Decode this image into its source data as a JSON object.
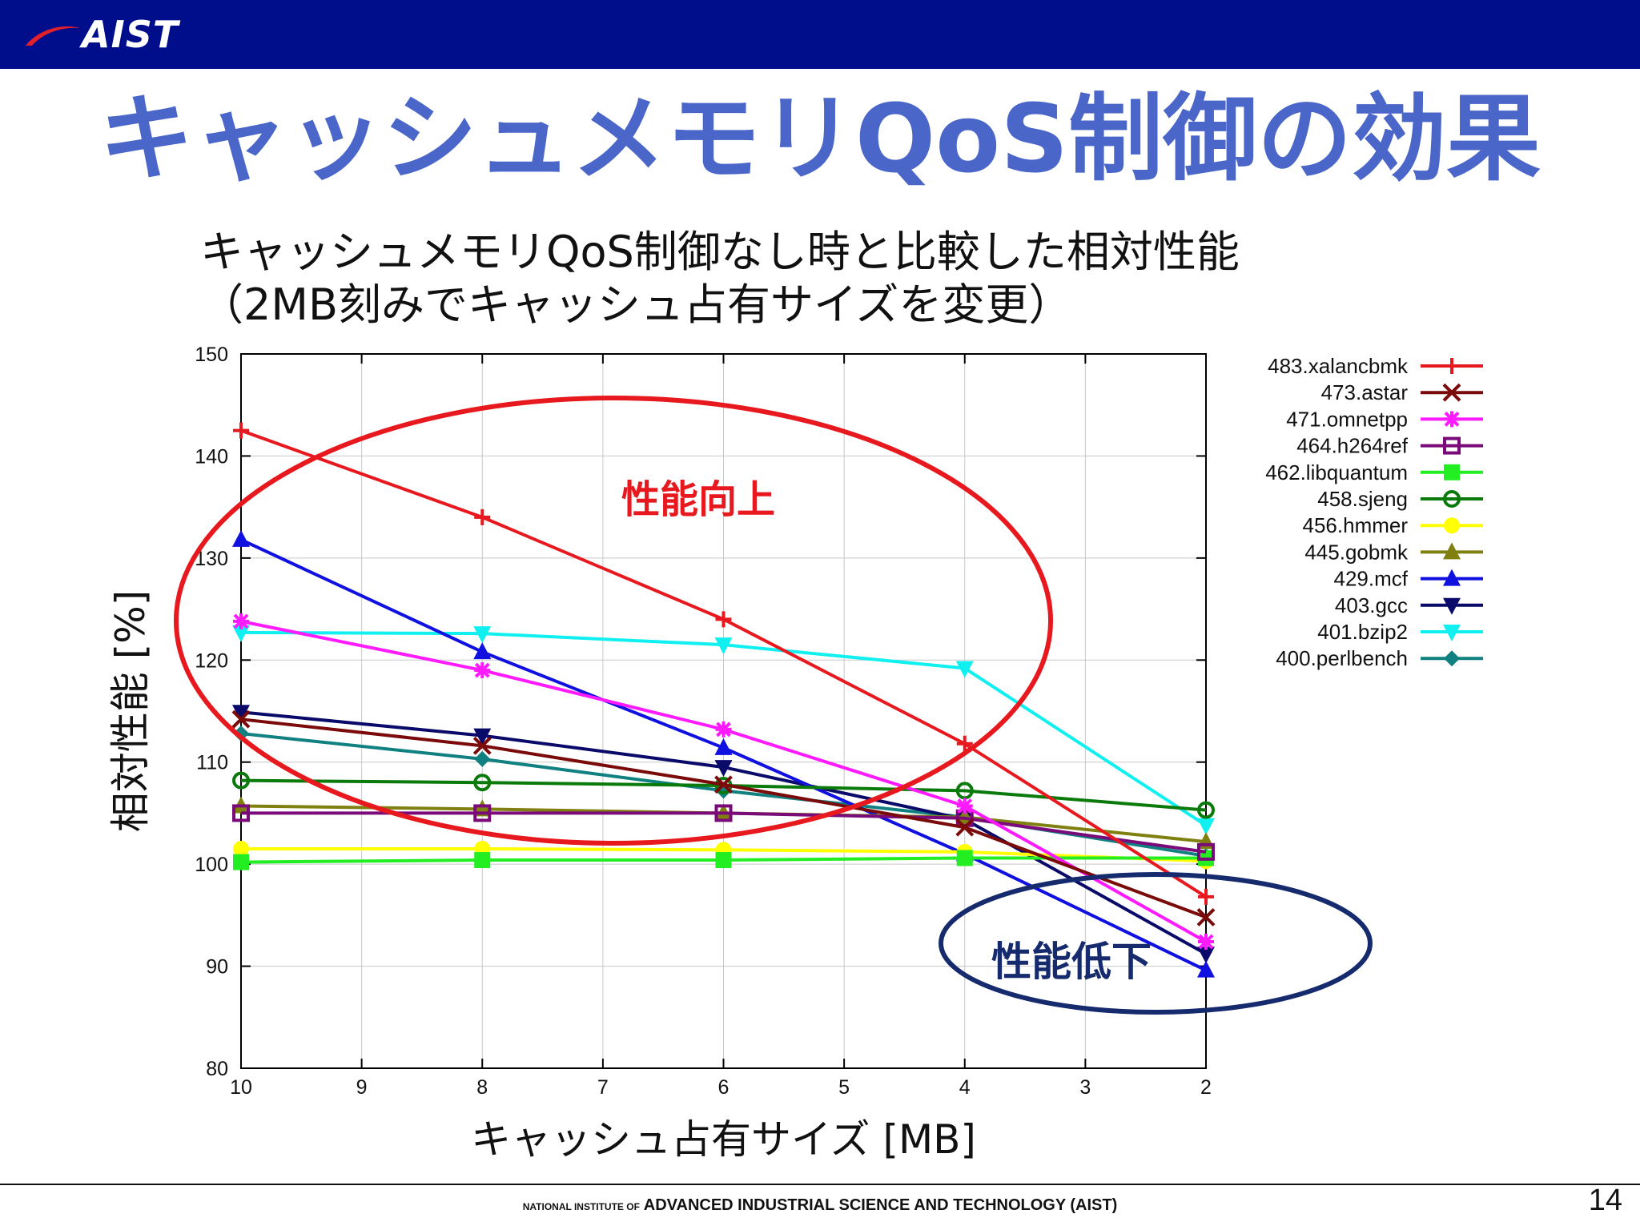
{
  "header": {
    "logo_text": "AIST",
    "logo_swoosh_color": "#e0202a",
    "bar_color": "#000e8c"
  },
  "slide": {
    "title": "キャッシュメモリQoS制御の効果",
    "subtitle_line1": "キャッシュメモリQoS制御なし時と比較した相対性能",
    "subtitle_line2": "（2MB刻みでキャッシュ占有サイズを変更）",
    "page_number": "14"
  },
  "footer": {
    "prefix": "NATIONAL INSTITUTE OF",
    "text": "ADVANCED INDUSTRIAL SCIENCE AND TECHNOLOGY (AIST)"
  },
  "annotations": {
    "improve_label": "性能向上",
    "improve_color": "#e8191e",
    "degrade_label": "性能低下",
    "degrade_color": "#162a6e"
  },
  "chart_data": {
    "type": "line",
    "xlabel": "キャッシュ占有サイズ [MB]",
    "ylabel": "相対性能 [%]",
    "xlim": [
      10,
      2
    ],
    "ylim": [
      80,
      150
    ],
    "x_reversed": true,
    "x_ticks": [
      10,
      9,
      8,
      7,
      6,
      5,
      4,
      3,
      2
    ],
    "y_ticks": [
      80,
      90,
      100,
      110,
      120,
      130,
      140,
      150
    ],
    "grid": true,
    "legend_position": "right",
    "x": [
      10,
      8,
      6,
      4,
      2
    ],
    "series": [
      {
        "name": "483.xalancbmk",
        "color": "#e8191e",
        "marker": "plus",
        "values": [
          142.5,
          134.0,
          124.0,
          111.8,
          96.8
        ]
      },
      {
        "name": "473.astar",
        "color": "#7b0a0a",
        "marker": "x",
        "values": [
          114.2,
          111.6,
          107.8,
          103.6,
          94.8
        ]
      },
      {
        "name": "471.omnetpp",
        "color": "#ff1aff",
        "marker": "star",
        "values": [
          123.8,
          119.0,
          113.2,
          105.7,
          92.4
        ]
      },
      {
        "name": "464.h264ref",
        "color": "#7a0a7a",
        "marker": "square-open",
        "values": [
          105.0,
          105.0,
          105.0,
          104.5,
          101.2
        ]
      },
      {
        "name": "462.libquantum",
        "color": "#22ee22",
        "marker": "square",
        "values": [
          100.2,
          100.4,
          100.4,
          100.6,
          100.6
        ]
      },
      {
        "name": "458.sjeng",
        "color": "#0a7a0a",
        "marker": "circle-open",
        "values": [
          108.2,
          108.0,
          107.7,
          107.2,
          105.3
        ]
      },
      {
        "name": "456.hmmer",
        "color": "#ffff00",
        "marker": "circle",
        "values": [
          101.5,
          101.5,
          101.4,
          101.2,
          100.3
        ]
      },
      {
        "name": "445.gobmk",
        "color": "#808010",
        "marker": "triangle",
        "values": [
          105.7,
          105.4,
          105.0,
          104.6,
          102.2
        ]
      },
      {
        "name": "429.mcf",
        "color": "#1010e0",
        "marker": "triangle",
        "values": [
          131.8,
          120.8,
          111.4,
          101.0,
          89.6
        ]
      },
      {
        "name": "403.gcc",
        "color": "#0a0a6a",
        "marker": "triangle-down",
        "values": [
          114.9,
          112.6,
          109.5,
          104.4,
          91.2
        ]
      },
      {
        "name": "401.bzip2",
        "color": "#10f0f0",
        "marker": "triangle-down",
        "values": [
          122.7,
          122.6,
          121.5,
          119.2,
          103.8
        ]
      },
      {
        "name": "400.perlbench",
        "color": "#108080",
        "marker": "diamond",
        "values": [
          112.8,
          110.3,
          107.2,
          104.6,
          100.8
        ]
      }
    ]
  }
}
